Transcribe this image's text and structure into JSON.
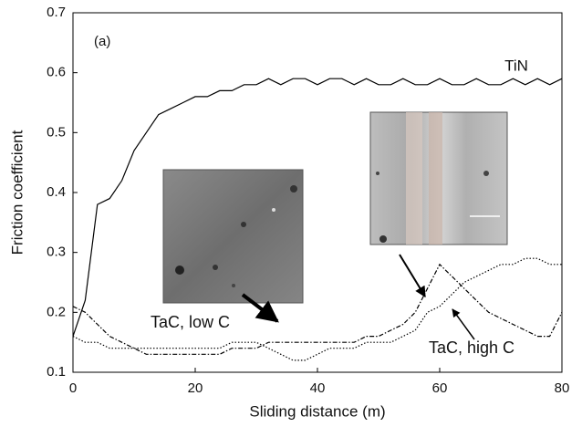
{
  "chart_data": {
    "type": "line",
    "xlabel": "Sliding distance (m)",
    "ylabel": "Friction coefficient",
    "x": [
      0,
      2,
      4,
      6,
      8,
      10,
      12,
      14,
      16,
      18,
      20,
      22,
      24,
      26,
      28,
      30,
      32,
      34,
      36,
      38,
      40,
      42,
      44,
      46,
      48,
      50,
      52,
      54,
      56,
      58,
      60,
      62,
      64,
      66,
      68,
      70,
      72,
      74,
      76,
      78,
      80
    ],
    "series": [
      {
        "name": "TiN",
        "color": "#000000",
        "line_style": "solid",
        "values": [
          0.16,
          0.22,
          0.38,
          0.39,
          0.42,
          0.47,
          0.5,
          0.53,
          0.54,
          0.55,
          0.56,
          0.56,
          0.57,
          0.57,
          0.58,
          0.58,
          0.59,
          0.58,
          0.59,
          0.59,
          0.58,
          0.59,
          0.59,
          0.58,
          0.59,
          0.58,
          0.58,
          0.59,
          0.58,
          0.58,
          0.59,
          0.58,
          0.58,
          0.59,
          0.58,
          0.58,
          0.59,
          0.58,
          0.59,
          0.58,
          0.59
        ]
      },
      {
        "name": "TaC, low C",
        "color": "#000000",
        "line_style": "dotted",
        "values": [
          0.16,
          0.15,
          0.15,
          0.14,
          0.14,
          0.14,
          0.14,
          0.14,
          0.14,
          0.14,
          0.14,
          0.14,
          0.14,
          0.15,
          0.15,
          0.15,
          0.14,
          0.13,
          0.12,
          0.12,
          0.13,
          0.14,
          0.14,
          0.14,
          0.15,
          0.15,
          0.15,
          0.16,
          0.17,
          0.2,
          0.21,
          0.23,
          0.25,
          0.26,
          0.27,
          0.28,
          0.28,
          0.29,
          0.29,
          0.28,
          0.28
        ]
      },
      {
        "name": "TaC, high C",
        "color": "#000000",
        "line_style": "dashdot",
        "values": [
          0.21,
          0.2,
          0.18,
          0.16,
          0.15,
          0.14,
          0.13,
          0.13,
          0.13,
          0.13,
          0.13,
          0.13,
          0.13,
          0.14,
          0.14,
          0.14,
          0.15,
          0.15,
          0.15,
          0.15,
          0.15,
          0.15,
          0.15,
          0.15,
          0.16,
          0.16,
          0.17,
          0.18,
          0.2,
          0.24,
          0.28,
          0.26,
          0.24,
          0.22,
          0.2,
          0.19,
          0.18,
          0.17,
          0.16,
          0.16,
          0.2
        ]
      }
    ],
    "panel_label": "(a)",
    "xlim": [
      0,
      80
    ],
    "xticks": [
      0,
      20,
      40,
      60,
      80
    ],
    "ylim": [
      0.1,
      0.7
    ],
    "yticks": [
      0.1,
      0.2,
      0.3,
      0.4,
      0.5,
      0.6,
      0.7
    ],
    "grid": false
  }
}
